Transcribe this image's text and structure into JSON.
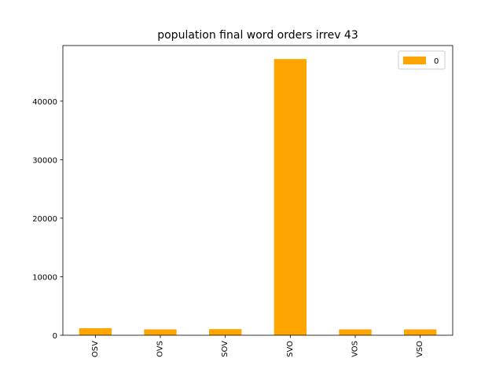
{
  "chart_data": {
    "type": "bar",
    "title": "population final word orders irrev 43",
    "xlabel": "",
    "ylabel": "",
    "categories": [
      "OSV",
      "OVS",
      "SOV",
      "SVO",
      "VOS",
      "VSO"
    ],
    "series": [
      {
        "name": "0",
        "values": [
          1200,
          1000,
          1050,
          47200,
          1000,
          1000
        ],
        "color": "#FFA500"
      }
    ],
    "ylim": [
      0,
      49500
    ],
    "yticks": [
      0,
      10000,
      20000,
      30000,
      40000
    ],
    "ytick_labels": [
      "0",
      "10000",
      "20000",
      "30000",
      "40000"
    ],
    "grid": false,
    "legend_position": "top-right"
  }
}
